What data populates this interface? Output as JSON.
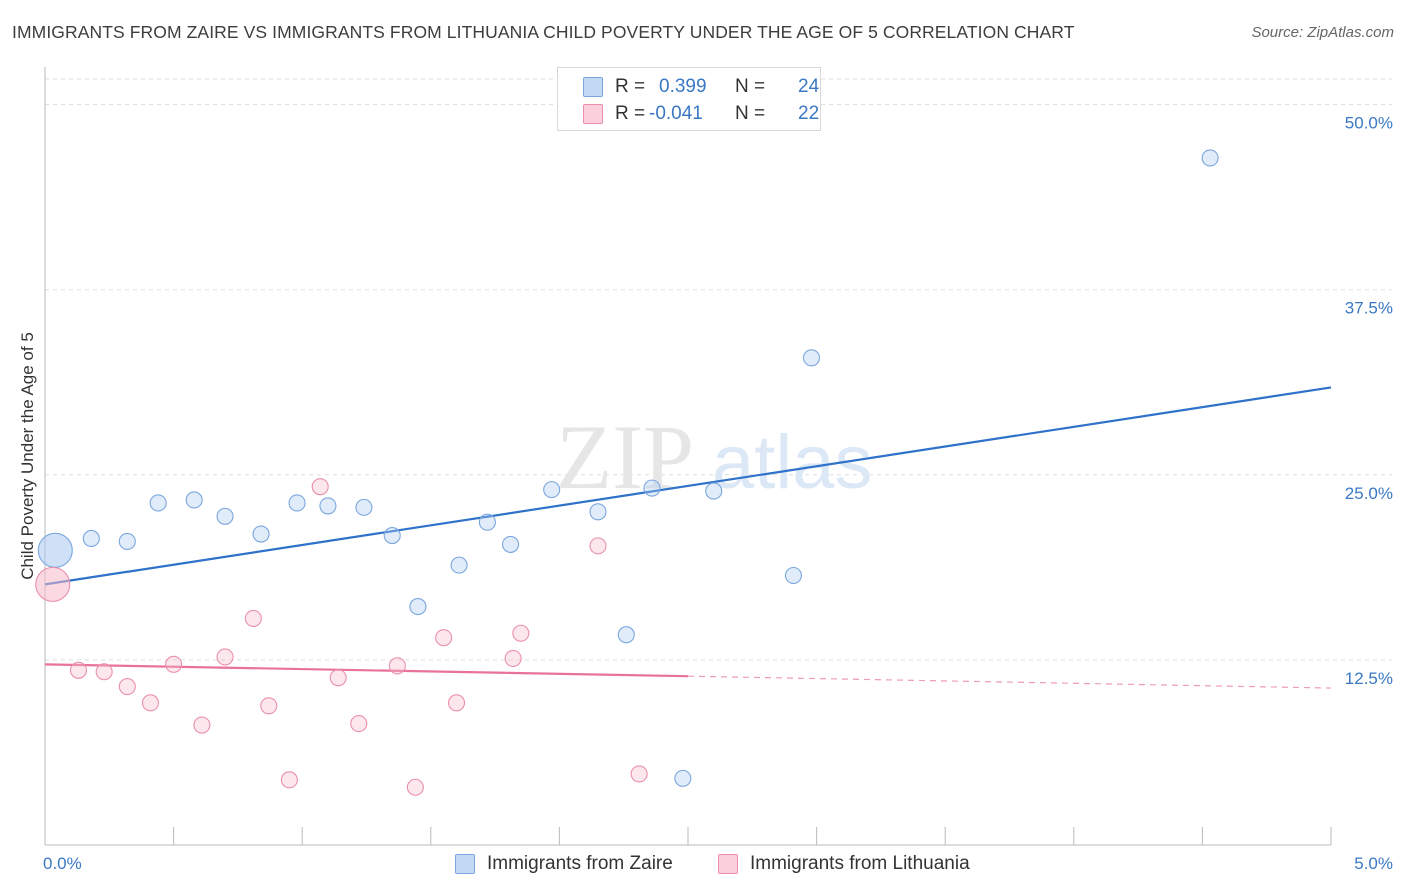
{
  "title": "IMMIGRANTS FROM ZAIRE VS IMMIGRANTS FROM LITHUANIA CHILD POVERTY UNDER THE AGE OF 5 CORRELATION CHART",
  "source": "Source: ZipAtlas.com",
  "watermark": {
    "zip": "ZIP",
    "atlas": "atlas"
  },
  "stats": [
    {
      "r_label": "R =",
      "r_value": "0.399",
      "n_label": "N =",
      "n_value": "24",
      "color": "#a9c8f0"
    },
    {
      "r_label": "R =",
      "r_value": "-0.041",
      "n_label": "N =",
      "n_value": "22",
      "color": "#f7b9cb"
    }
  ],
  "legend": [
    {
      "label": "Immigrants from Zaire",
      "color": "#a9c8f0"
    },
    {
      "label": "Immigrants from Lithuania",
      "color": "#f7b9cb"
    }
  ],
  "chart_data": {
    "type": "scatter",
    "title": "IMMIGRANTS FROM ZAIRE VS IMMIGRANTS FROM LITHUANIA CHILD POVERTY UNDER THE AGE OF 5 CORRELATION CHART",
    "xlabel": "",
    "ylabel": "Child Poverty Under the Age of 5",
    "xlim": [
      0,
      5
    ],
    "ylim": [
      0,
      52
    ],
    "x_tick_labels": [
      "0.0%",
      "5.0%"
    ],
    "y_ticks": [
      12.5,
      25.0,
      37.5,
      50.0
    ],
    "y_tick_labels": [
      "12.5%",
      "25.0%",
      "37.5%",
      "50.0%"
    ],
    "grid": true,
    "series": [
      {
        "name": "Immigrants from Zaire",
        "color": "#a9c8f0",
        "stroke": "#7aa6de",
        "trend_color": "#2f72c9",
        "trend": {
          "x0": 0.0,
          "y0": 17.6,
          "x1": 5.0,
          "y1": 30.9,
          "solid_until": 5.0
        },
        "points": [
          {
            "x": 0.04,
            "y": 19.9,
            "big": true
          },
          {
            "x": 0.18,
            "y": 20.7
          },
          {
            "x": 0.32,
            "y": 20.5
          },
          {
            "x": 0.44,
            "y": 23.1
          },
          {
            "x": 0.58,
            "y": 23.3
          },
          {
            "x": 0.7,
            "y": 22.2
          },
          {
            "x": 0.84,
            "y": 21.0
          },
          {
            "x": 0.98,
            "y": 23.1
          },
          {
            "x": 1.1,
            "y": 22.9
          },
          {
            "x": 1.24,
            "y": 22.8
          },
          {
            "x": 1.35,
            "y": 20.9
          },
          {
            "x": 1.45,
            "y": 16.1
          },
          {
            "x": 1.61,
            "y": 18.9
          },
          {
            "x": 1.72,
            "y": 21.8
          },
          {
            "x": 1.81,
            "y": 20.3
          },
          {
            "x": 1.97,
            "y": 24.0
          },
          {
            "x": 2.15,
            "y": 22.5
          },
          {
            "x": 2.26,
            "y": 14.2
          },
          {
            "x": 2.36,
            "y": 24.1
          },
          {
            "x": 2.48,
            "y": 4.5
          },
          {
            "x": 2.6,
            "y": 23.9
          },
          {
            "x": 2.91,
            "y": 18.2
          },
          {
            "x": 2.98,
            "y": 32.9
          },
          {
            "x": 4.53,
            "y": 46.4
          }
        ]
      },
      {
        "name": "Immigrants from Lithuania",
        "color": "#f7b9cb",
        "stroke": "#ea8fab",
        "trend_color": "#e8729a",
        "trend": {
          "x0": 0.0,
          "y0": 12.2,
          "x1": 5.0,
          "y1": 10.6,
          "solid_until": 2.5
        },
        "points": [
          {
            "x": 0.03,
            "y": 17.6,
            "big": true
          },
          {
            "x": 0.13,
            "y": 11.8
          },
          {
            "x": 0.23,
            "y": 11.7
          },
          {
            "x": 0.32,
            "y": 10.7
          },
          {
            "x": 0.41,
            "y": 9.6
          },
          {
            "x": 0.5,
            "y": 12.2
          },
          {
            "x": 0.61,
            "y": 8.1
          },
          {
            "x": 0.7,
            "y": 12.7
          },
          {
            "x": 0.81,
            "y": 15.3
          },
          {
            "x": 0.87,
            "y": 9.4
          },
          {
            "x": 0.95,
            "y": 4.4
          },
          {
            "x": 1.07,
            "y": 24.2
          },
          {
            "x": 1.14,
            "y": 11.3
          },
          {
            "x": 1.22,
            "y": 8.2
          },
          {
            "x": 1.37,
            "y": 12.1
          },
          {
            "x": 1.44,
            "y": 3.9
          },
          {
            "x": 1.55,
            "y": 14.0
          },
          {
            "x": 1.6,
            "y": 9.6
          },
          {
            "x": 1.82,
            "y": 12.6
          },
          {
            "x": 1.85,
            "y": 14.3
          },
          {
            "x": 2.15,
            "y": 20.2
          },
          {
            "x": 2.31,
            "y": 4.8
          }
        ]
      }
    ]
  }
}
